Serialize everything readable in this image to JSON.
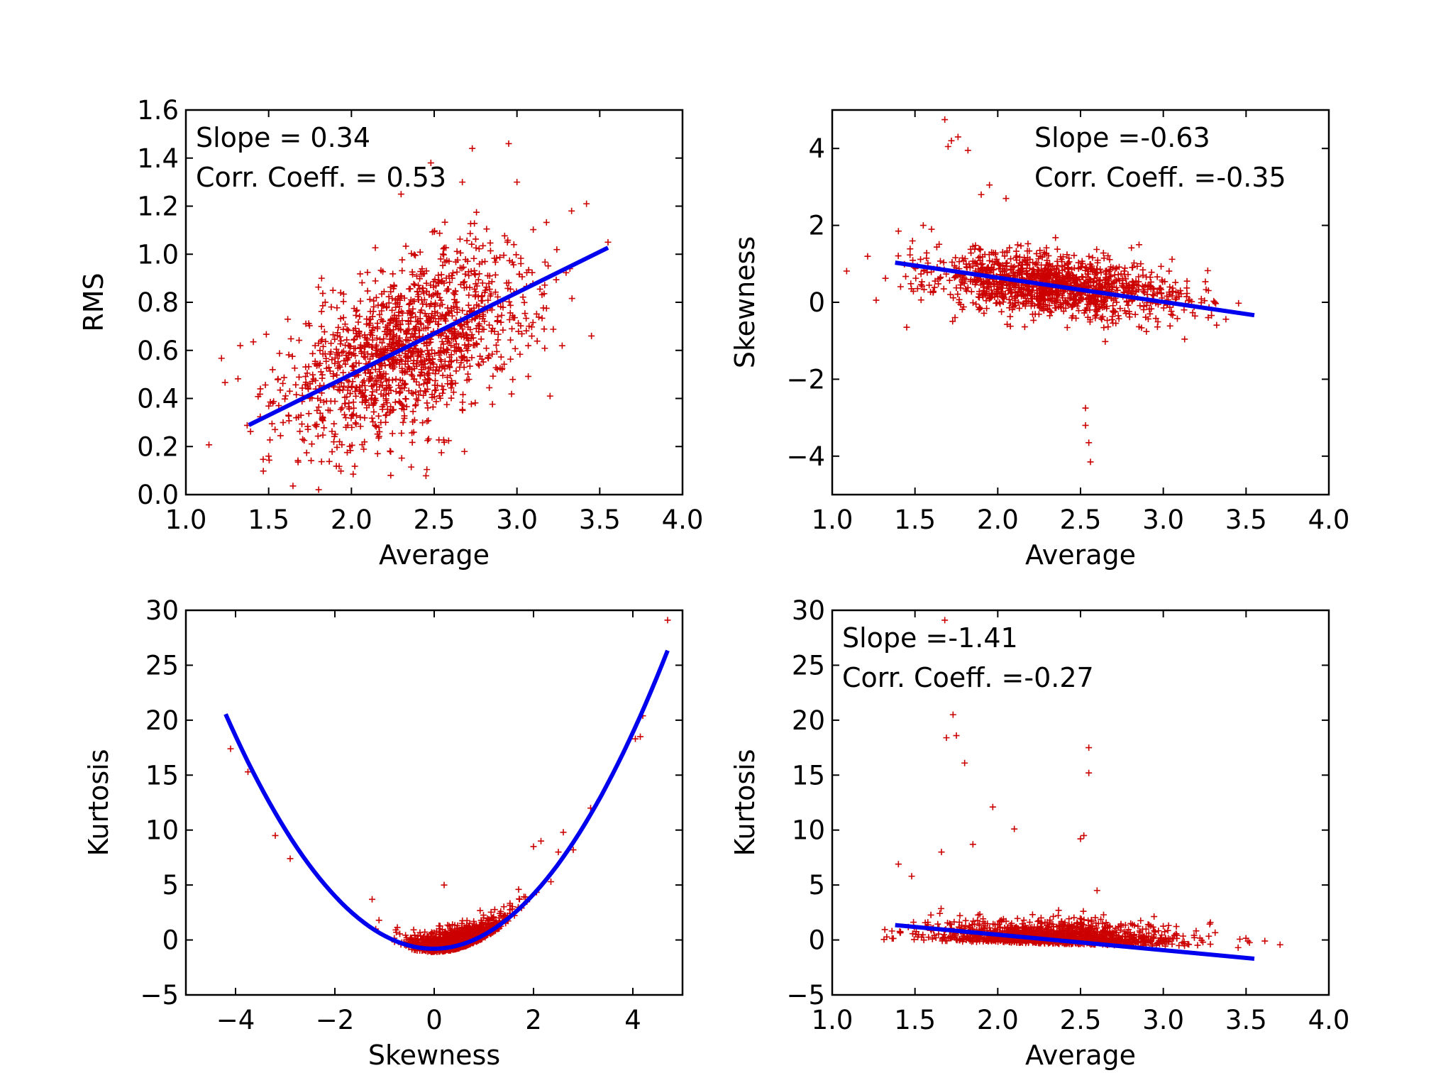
{
  "colors": {
    "points": "#cc0000",
    "fit": "#0000ee",
    "axes": "#000000",
    "background": "#ffffff"
  },
  "chart_data": [
    {
      "type": "scatter",
      "title": "",
      "xlabel": "Average",
      "ylabel": "RMS",
      "xlim": [
        1.0,
        4.0
      ],
      "ylim": [
        0.0,
        1.6
      ],
      "xticks": [
        1.0,
        1.5,
        2.0,
        2.5,
        3.0,
        3.5,
        4.0
      ],
      "xtick_labels": [
        "1.0",
        "1.5",
        "2.0",
        "2.5",
        "3.0",
        "3.5",
        "4.0"
      ],
      "yticks": [
        0.0,
        0.2,
        0.4,
        0.6,
        0.8,
        1.0,
        1.2,
        1.4,
        1.6
      ],
      "ytick_labels": [
        "0.0",
        "0.2",
        "0.4",
        "0.6",
        "0.8",
        "1.0",
        "1.2",
        "1.4",
        "1.6"
      ],
      "annotations": [
        "Slope = 0.34",
        "Corr. Coeff. = 0.53"
      ],
      "annotation_anchor": "top-left",
      "fit": {
        "kind": "linear",
        "x_range": [
          1.38,
          3.55
        ],
        "slope": 0.34,
        "intercept": -0.18
      },
      "cloud": {
        "n": 1400,
        "x_mean": 2.35,
        "x_sd": 0.38,
        "y_mean": 0.62,
        "y_sd": 0.2,
        "corr": 0.53
      },
      "points": [
        [
          2.48,
          1.38
        ],
        [
          2.73,
          1.44
        ],
        [
          2.95,
          1.46
        ],
        [
          2.67,
          1.3
        ],
        [
          3.0,
          1.3
        ],
        [
          3.42,
          1.21
        ],
        [
          3.33,
          1.18
        ],
        [
          3.55,
          1.05
        ],
        [
          3.2,
          0.41
        ],
        [
          1.5,
          0.16
        ],
        [
          1.45,
          0.44
        ],
        [
          1.82,
          0.9
        ],
        [
          3.45,
          0.66
        ],
        [
          2.3,
          1.25
        ],
        [
          1.62,
          0.33
        ]
      ]
    },
    {
      "type": "scatter",
      "title": "",
      "xlabel": "Average",
      "ylabel": "Skewness",
      "xlim": [
        1.0,
        4.0
      ],
      "ylim": [
        -5,
        5
      ],
      "xticks": [
        1.0,
        1.5,
        2.0,
        2.5,
        3.0,
        3.5,
        4.0
      ],
      "xtick_labels": [
        "1.0",
        "1.5",
        "2.0",
        "2.5",
        "3.0",
        "3.5",
        "4.0"
      ],
      "yticks": [
        -4,
        -2,
        0,
        2,
        4
      ],
      "ytick_labels": [
        "−4",
        "−2",
        "0",
        "2",
        "4"
      ],
      "annotations": [
        "Slope =-0.63",
        "Corr. Coeff. =-0.35"
      ],
      "annotation_anchor": "top-right",
      "fit": {
        "kind": "linear",
        "x_range": [
          1.38,
          3.55
        ],
        "slope": -0.63,
        "intercept": 1.9
      },
      "cloud": {
        "n": 1300,
        "x_mean": 2.35,
        "x_sd": 0.38,
        "y_mean": 0.42,
        "y_sd": 0.42,
        "corr": -0.35
      },
      "points": [
        [
          1.68,
          4.75
        ],
        [
          1.72,
          4.2
        ],
        [
          1.76,
          4.3
        ],
        [
          1.7,
          4.05
        ],
        [
          1.82,
          3.95
        ],
        [
          2.53,
          -2.75
        ],
        [
          2.53,
          -3.2
        ],
        [
          2.55,
          -3.65
        ],
        [
          2.56,
          -4.15
        ],
        [
          1.95,
          3.05
        ],
        [
          1.9,
          2.8
        ],
        [
          2.05,
          2.7
        ],
        [
          1.55,
          2.0
        ],
        [
          1.4,
          1.85
        ],
        [
          1.45,
          -0.65
        ],
        [
          1.6,
          1.9
        ]
      ]
    },
    {
      "type": "scatter",
      "title": "",
      "xlabel": "Skewness",
      "ylabel": "Kurtosis",
      "xlim": [
        -5,
        5
      ],
      "ylim": [
        -5,
        30
      ],
      "xticks": [
        -4,
        -2,
        0,
        2,
        4
      ],
      "xtick_labels": [
        "−4",
        "−2",
        "0",
        "2",
        "4"
      ],
      "yticks": [
        -5,
        0,
        5,
        10,
        15,
        20,
        25,
        30
      ],
      "ytick_labels": [
        "−5",
        "0",
        "5",
        "10",
        "15",
        "20",
        "25",
        "30"
      ],
      "annotations": [],
      "annotation_anchor": "top-left",
      "fit": {
        "kind": "quadratic",
        "x_range": [
          -4.2,
          4.7
        ],
        "a": 1.22,
        "b": 0.04,
        "c": -0.8
      },
      "cloud": {
        "n": 1300,
        "x_mean": 0.45,
        "x_sd": 0.48,
        "y_mean": 0,
        "y_sd": 0.9,
        "corr": 0
      },
      "points": [
        [
          4.7,
          29.1
        ],
        [
          4.15,
          18.5
        ],
        [
          4.05,
          18.3
        ],
        [
          4.2,
          20.4
        ],
        [
          3.15,
          12.0
        ],
        [
          2.6,
          9.8
        ],
        [
          2.15,
          9.0
        ],
        [
          2.0,
          8.5
        ],
        [
          2.5,
          8.0
        ],
        [
          2.8,
          8.2
        ],
        [
          -4.1,
          17.4
        ],
        [
          -3.75,
          15.3
        ],
        [
          -3.2,
          9.5
        ],
        [
          -2.9,
          7.4
        ],
        [
          0.2,
          5.0
        ],
        [
          -1.25,
          3.7
        ],
        [
          2.35,
          5.3
        ],
        [
          1.7,
          4.6
        ]
      ]
    },
    {
      "type": "scatter",
      "title": "",
      "xlabel": "Average",
      "ylabel": "Kurtosis",
      "xlim": [
        1.0,
        4.0
      ],
      "ylim": [
        -5,
        30
      ],
      "xticks": [
        1.0,
        1.5,
        2.0,
        2.5,
        3.0,
        3.5,
        4.0
      ],
      "xtick_labels": [
        "1.0",
        "1.5",
        "2.0",
        "2.5",
        "3.0",
        "3.5",
        "4.0"
      ],
      "yticks": [
        -5,
        0,
        5,
        10,
        15,
        20,
        25,
        30
      ],
      "ytick_labels": [
        "−5",
        "0",
        "5",
        "10",
        "15",
        "20",
        "25",
        "30"
      ],
      "annotations": [
        "Slope =-1.41",
        "Corr. Coeff. =-0.27"
      ],
      "annotation_anchor": "top-left",
      "fit": {
        "kind": "linear",
        "x_range": [
          1.38,
          3.55
        ],
        "slope": -1.41,
        "intercept": 3.3
      },
      "cloud": {
        "n": 1300,
        "x_mean": 2.35,
        "x_sd": 0.38,
        "y_mean": 0.2,
        "y_sd": 0.9,
        "corr": -0.27
      },
      "points": [
        [
          1.68,
          29.1
        ],
        [
          1.73,
          20.5
        ],
        [
          1.69,
          18.4
        ],
        [
          1.75,
          18.6
        ],
        [
          1.8,
          16.1
        ],
        [
          2.55,
          17.5
        ],
        [
          2.55,
          15.2
        ],
        [
          1.97,
          12.1
        ],
        [
          2.52,
          9.5
        ],
        [
          2.5,
          9.2
        ],
        [
          2.1,
          10.1
        ],
        [
          1.4,
          6.9
        ],
        [
          1.48,
          5.8
        ],
        [
          1.66,
          8.0
        ],
        [
          1.85,
          8.7
        ],
        [
          2.6,
          4.5
        ]
      ]
    }
  ]
}
